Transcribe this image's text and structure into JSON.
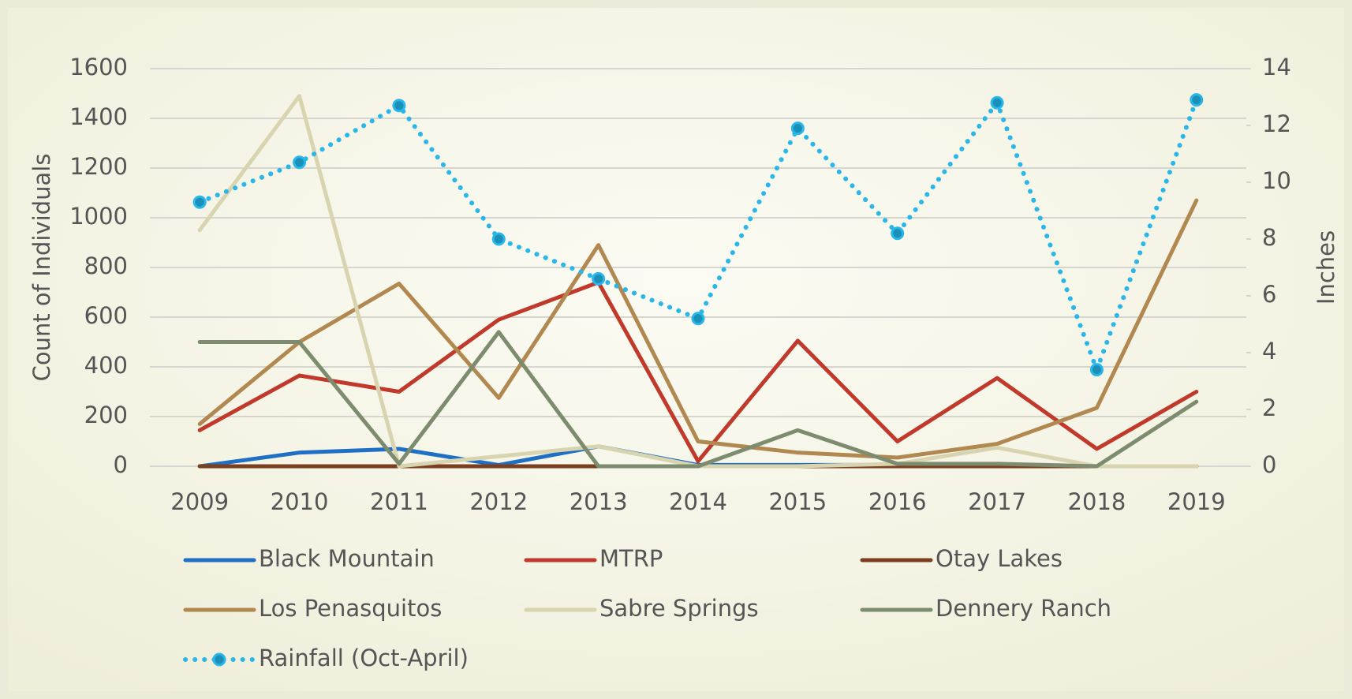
{
  "chart_data": {
    "type": "line",
    "categories": [
      "2009",
      "2010",
      "2011",
      "2012",
      "2013",
      "2014",
      "2015",
      "2016",
      "2017",
      "2018",
      "2019"
    ],
    "series": [
      {
        "name": "Black Mountain",
        "color": "#1f6fc5",
        "values": [
          0,
          55,
          70,
          5,
          80,
          5,
          5,
          5,
          5,
          0,
          0
        ]
      },
      {
        "name": "MTRP",
        "color": "#c0392b",
        "values": [
          145,
          365,
          300,
          590,
          740,
          20,
          505,
          100,
          355,
          70,
          300
        ]
      },
      {
        "name": "Otay Lakes",
        "color": "#7b3f20",
        "values": [
          0,
          0,
          0,
          0,
          0,
          0,
          0,
          0,
          0,
          0,
          0
        ]
      },
      {
        "name": "Los Penasquitos",
        "color": "#b08850",
        "values": [
          170,
          500,
          735,
          275,
          890,
          100,
          55,
          35,
          90,
          235,
          1070
        ]
      },
      {
        "name": "Sabre Springs",
        "color": "#d9d4b0",
        "values": [
          950,
          1490,
          0,
          40,
          80,
          0,
          0,
          10,
          75,
          0,
          0
        ]
      },
      {
        "name": "Dennery Ranch",
        "color": "#7d8c6e",
        "values": [
          500,
          500,
          10,
          540,
          0,
          0,
          145,
          10,
          10,
          0,
          260
        ]
      },
      {
        "name": "Rainfall (Oct-April)",
        "color": "#29b6e8",
        "axis": "y2",
        "line_style": "dotted",
        "marker": "circle",
        "values": [
          9.3,
          10.7,
          12.7,
          8.0,
          6.6,
          5.2,
          11.9,
          8.2,
          12.8,
          3.4,
          12.9
        ]
      }
    ],
    "ylabel": "Count of Individuals",
    "y2label": "Inches",
    "ylim": [
      0,
      1600
    ],
    "yticks": [
      0,
      200,
      400,
      600,
      800,
      1000,
      1200,
      1400,
      1600
    ],
    "y2lim": [
      0,
      14
    ],
    "y2ticks": [
      0,
      2,
      4,
      6,
      8,
      10,
      12,
      14
    ],
    "grid": true
  }
}
